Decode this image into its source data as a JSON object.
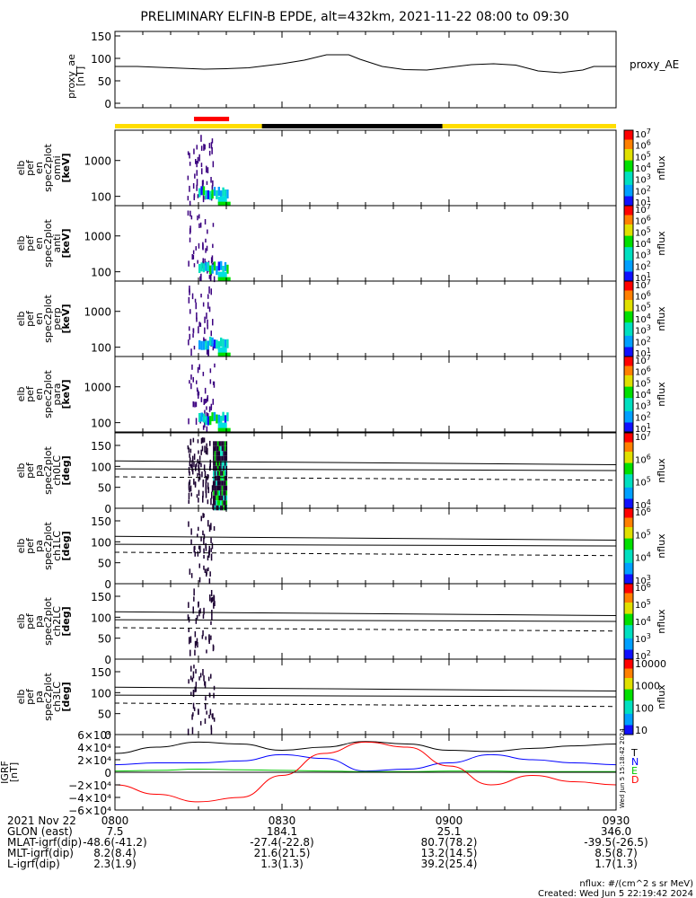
{
  "title": "PRELIMINARY ELFIN-B EPDE, alt=432km, 2021-11-22 08:00 to 09:30",
  "colors": {
    "bar_day": "#ffdd00",
    "bar_night": "#000000",
    "bar_science": "#ff0000",
    "grf_T": "#000000",
    "grf_N": "#0000ff",
    "grf_E": "#00c800",
    "grf_D": "#ff0000"
  },
  "chart_data": [
    {
      "type": "line",
      "id": "proxy_ae",
      "ylabel": "proxy_ae\n[nT]",
      "legend": "proxy_AE",
      "ylim": [
        0,
        150
      ],
      "yticks": [
        "150",
        "100",
        "50",
        "0"
      ],
      "ytick_values": [
        150,
        100,
        50,
        0
      ],
      "x": [
        0,
        4,
        8,
        12,
        16,
        20,
        24,
        26,
        30,
        34,
        38,
        42,
        44,
        48,
        52,
        56,
        60,
        64,
        68,
        72,
        76,
        80,
        84,
        86,
        90
      ],
      "values": [
        82,
        82,
        80,
        78,
        76,
        77,
        79,
        82,
        88,
        96,
        108,
        108,
        98,
        82,
        75,
        74,
        80,
        86,
        88,
        85,
        72,
        68,
        74,
        82,
        82
      ]
    },
    {
      "type": "heatmap",
      "id": "omni",
      "ylabel": "elb\npef\nen\nspec2plot\nomni\n[keV]",
      "yscale": "log",
      "ylim": [
        55,
        7000
      ],
      "yticks": [
        "1000",
        "100"
      ],
      "ytick_values": [
        1000,
        100
      ],
      "zlabel": "nflux",
      "zlim": [
        10,
        10000000
      ],
      "ztick_exponents": [
        7,
        6,
        5,
        4,
        3,
        2,
        1
      ]
    },
    {
      "type": "heatmap",
      "id": "anti",
      "ylabel": "elb\npef\nen\nspec2plot\nanti\n[keV]",
      "yscale": "log",
      "ylim": [
        55,
        7000
      ],
      "yticks": [
        "1000",
        "100"
      ],
      "ytick_values": [
        1000,
        100
      ],
      "zlabel": "nflux",
      "zlim": [
        10,
        10000000
      ],
      "ztick_exponents": [
        7,
        6,
        5,
        4,
        3,
        2,
        1
      ]
    },
    {
      "type": "heatmap",
      "id": "perp",
      "ylabel": "elb\npef\nen\nspec2plot\nperp\n[keV]",
      "yscale": "log",
      "ylim": [
        55,
        7000
      ],
      "yticks": [
        "1000",
        "100"
      ],
      "ytick_values": [
        1000,
        100
      ],
      "zlabel": "nflux",
      "zlim": [
        10,
        10000000
      ],
      "ztick_exponents": [
        7,
        6,
        5,
        4,
        3,
        2,
        1
      ]
    },
    {
      "type": "heatmap",
      "id": "para",
      "ylabel": "elb\npef\nen\nspec2plot\npara\n[keV]",
      "yscale": "log",
      "ylim": [
        55,
        7000
      ],
      "yticks": [
        "1000",
        "100"
      ],
      "ytick_values": [
        1000,
        100
      ],
      "zlabel": "nflux",
      "zlim": [
        10,
        10000000
      ],
      "ztick_exponents": [
        7,
        6,
        5,
        4,
        3,
        2,
        1
      ]
    },
    {
      "type": "heatmap",
      "id": "ch0LC",
      "ylabel": "elb\npef\npa\nspec2plot\nch0LC\n[deg]",
      "ylim": [
        0,
        180
      ],
      "yticks": [
        "150",
        "100",
        "50",
        "0"
      ],
      "ytick_values": [
        150,
        100,
        50,
        0
      ],
      "zlabel": "nflux",
      "zlim": [
        1000,
        10000000
      ],
      "ztick_exponents": [
        7,
        6,
        5,
        4
      ]
    },
    {
      "type": "heatmap",
      "id": "ch1LC",
      "ylabel": "elb\npef\npa\nspec2plot\nch1LC\n[deg]",
      "ylim": [
        0,
        180
      ],
      "yticks": [
        "150",
        "100",
        "50",
        "0"
      ],
      "ytick_values": [
        150,
        100,
        50,
        0
      ],
      "zlabel": "nflux",
      "zlim": [
        100,
        10000000
      ],
      "ztick_exponents": [
        6,
        5,
        4,
        3
      ]
    },
    {
      "type": "heatmap",
      "id": "ch2LC",
      "ylabel": "elb\npef\npa\nspec2plot\nch2LC\n[deg]",
      "ylim": [
        0,
        180
      ],
      "yticks": [
        "150",
        "100",
        "50",
        "0"
      ],
      "ytick_values": [
        150,
        100,
        50,
        0
      ],
      "zlabel": "nflux",
      "zlim": [
        10,
        1000000
      ],
      "ztick_exponents": [
        6,
        5,
        4,
        3,
        2
      ]
    },
    {
      "type": "heatmap",
      "id": "ch3LC",
      "ylabel": "elb\npef\npa\nspec2plot\nch3LC\n[deg]",
      "ylim": [
        0,
        180
      ],
      "yticks": [
        "150",
        "100",
        "50",
        "0"
      ],
      "ytick_values": [
        150,
        100,
        50,
        0
      ],
      "zlabel": "nflux",
      "zlim": [
        10,
        10000
      ],
      "zticks": [
        "10000",
        "1000",
        "100",
        "10"
      ]
    },
    {
      "type": "line",
      "id": "igrf",
      "ylabel": "IGRF\n[nT]",
      "ylim": [
        -60000,
        60000
      ],
      "yticks": [
        "6×10⁴",
        "4×10⁴",
        "2×10⁴",
        "0",
        "−2×10⁴",
        "−4×10⁴",
        "−6×10⁴"
      ],
      "ytick_values": [
        60000,
        40000,
        20000,
        0,
        -20000,
        -40000,
        -60000
      ],
      "x": [
        0,
        7.5,
        15,
        22.5,
        30,
        37.5,
        45,
        52.5,
        60,
        67.5,
        75,
        82.5,
        90
      ],
      "series": [
        {
          "name": "T",
          "values": [
            30000,
            40000,
            48000,
            45000,
            35000,
            40000,
            49000,
            45000,
            35000,
            33000,
            38000,
            42000,
            45000
          ]
        },
        {
          "name": "N",
          "values": [
            12000,
            15000,
            15000,
            18000,
            28000,
            22000,
            2000,
            5000,
            15000,
            28000,
            20000,
            15000,
            12000
          ]
        },
        {
          "name": "E",
          "values": [
            2000,
            3000,
            5000,
            4000,
            3000,
            2000,
            1000,
            1000,
            2000,
            2000,
            1000,
            1000,
            1000
          ]
        },
        {
          "name": "D",
          "values": [
            -20000,
            -35000,
            -47000,
            -40000,
            -5000,
            30000,
            48000,
            40000,
            10000,
            -20000,
            -5000,
            -15000,
            -20000
          ]
        }
      ]
    }
  ],
  "orbit_label": "Wed Jun  5 15:18:42 2024",
  "footer": {
    "rows": [
      {
        "label": "2021 Nov 22",
        "values": [
          "0800",
          "0830",
          "0900",
          "0930"
        ]
      },
      {
        "label": "GLON (east)",
        "values": [
          "7.5",
          "184.1",
          "25.1",
          "346.0"
        ]
      },
      {
        "label": "MLAT-igrf(dip)",
        "values": [
          "-48.6(-41.2)",
          "-27.4(-22.8)",
          "80.7(78.2)",
          "-39.5(-26.5)"
        ]
      },
      {
        "label": "MLT-igrf(dip)",
        "values": [
          "8.2(8.4)",
          "21.6(21.5)",
          "13.2(14.5)",
          "8.5(8.7)"
        ]
      },
      {
        "label": "L-igrf(dip)",
        "values": [
          "2.3(1.9)",
          "1.3(1.3)",
          "39.2(25.4)",
          "1.7(1.3)"
        ]
      }
    ],
    "units_note": "nflux: #/(cm^2 s sr MeV)",
    "created": "Created: Wed Jun  5 22:19:42 2024"
  }
}
